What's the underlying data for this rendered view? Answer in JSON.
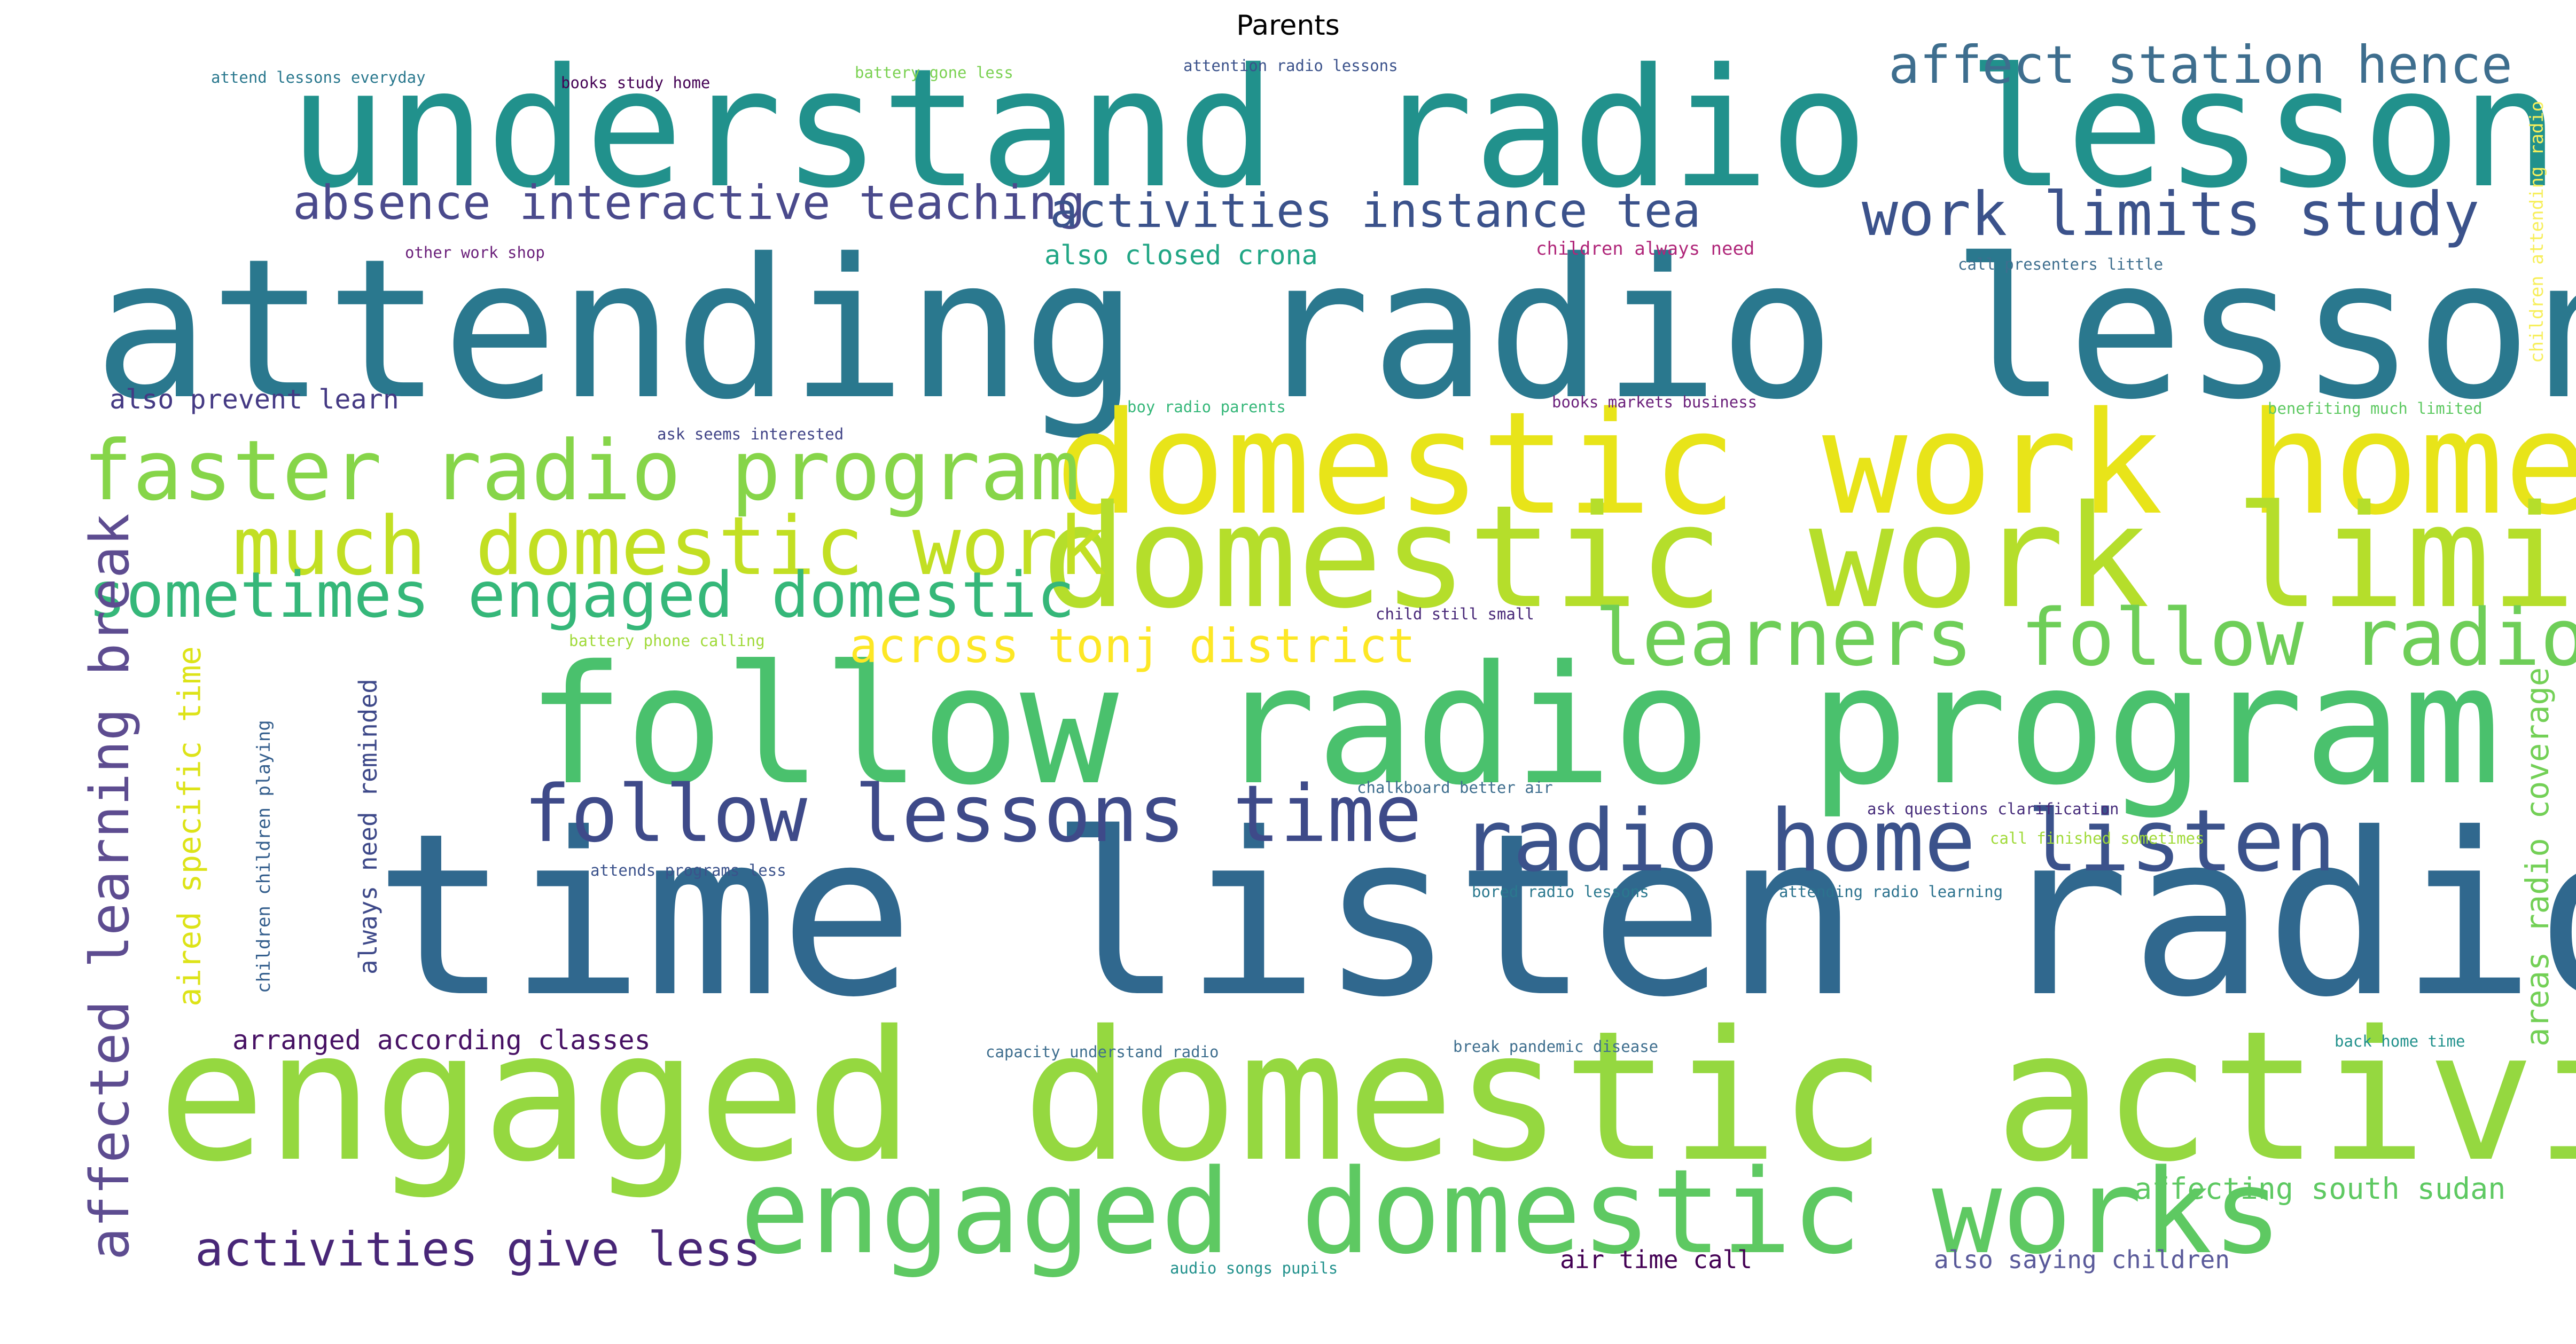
{
  "chart_data": {
    "type": "wordcloud",
    "title": "Parents",
    "words": [
      {
        "text": "time listen radio",
        "weight": 100,
        "color": "#30688e"
      },
      {
        "text": "attending radio lessons",
        "weight": 86,
        "color": "#2a788e"
      },
      {
        "text": "engaged domestic activities",
        "weight": 80,
        "color": "#95d840"
      },
      {
        "text": "understand radio lessons",
        "weight": 73,
        "color": "#21918c"
      },
      {
        "text": "follow radio program",
        "weight": 73,
        "color": "#4ac16d"
      },
      {
        "text": "domestic work home",
        "weight": 63,
        "color": "#e8e419"
      },
      {
        "text": "domestic work limits",
        "weight": 63,
        "color": "#b5de2b"
      },
      {
        "text": "engaged domestic works",
        "weight": 52,
        "color": "#5ec962"
      },
      {
        "text": "radio home listen",
        "weight": 38,
        "color": "#3b528b"
      },
      {
        "text": "faster radio program",
        "weight": 37,
        "color": "#86d549"
      },
      {
        "text": "much domestic work",
        "weight": 36,
        "color": "#c2df23"
      },
      {
        "text": "follow lessons time",
        "weight": 35,
        "color": "#3e4a89"
      },
      {
        "text": "learners follow radio",
        "weight": 35,
        "color": "#6ece58"
      },
      {
        "text": "sometimes engaged domestic",
        "weight": 28,
        "color": "#35b779"
      },
      {
        "text": "work limits study",
        "weight": 27,
        "color": "#3b528b"
      },
      {
        "text": "affected learning break",
        "weight": 24,
        "color": "#5d4c90"
      },
      {
        "text": "affect station hence",
        "weight": 23,
        "color": "#3e6e8e"
      },
      {
        "text": "absence interactive teaching",
        "weight": 21,
        "color": "#4a4a8c"
      },
      {
        "text": "activities instance tea",
        "weight": 21,
        "color": "#3b528b"
      },
      {
        "text": "across tonj district",
        "weight": 21,
        "color": "#fde725"
      },
      {
        "text": "activities give less",
        "weight": 21,
        "color": "#482677"
      },
      {
        "text": "aired specific time",
        "weight": 14,
        "color": "#dde318"
      },
      {
        "text": "areas radio coverage",
        "weight": 14,
        "color": "#73d056"
      },
      {
        "text": "affecting south sudan",
        "weight": 13,
        "color": "#5ec962"
      },
      {
        "text": "also closed crona",
        "weight": 12,
        "color": "#21a685"
      },
      {
        "text": "arranged according classes",
        "weight": 12,
        "color": "#471164"
      },
      {
        "text": "also prevent learn",
        "weight": 12,
        "color": "#443983"
      },
      {
        "text": "always need reminded",
        "weight": 11,
        "color": "#3e4989"
      },
      {
        "text": "air time call",
        "weight": 11,
        "color": "#440154"
      },
      {
        "text": "also saying children",
        "weight": 11,
        "color": "#5a5a9a"
      },
      {
        "text": "children always need",
        "weight": 8,
        "color": "#b0277a"
      },
      {
        "text": "children attending radio",
        "weight": 8,
        "color": "#f7ef5c"
      },
      {
        "text": "children children playing",
        "weight": 8,
        "color": "#355f8d"
      },
      {
        "text": "attend lessons everyday",
        "weight": 7,
        "color": "#2a788e"
      },
      {
        "text": "books study home",
        "weight": 7,
        "color": "#440154"
      },
      {
        "text": "battery gone less",
        "weight": 7,
        "color": "#7ad151"
      },
      {
        "text": "attention radio lessons",
        "weight": 7,
        "color": "#3b528b"
      },
      {
        "text": "other work shop",
        "weight": 7,
        "color": "#6a1f7a"
      },
      {
        "text": "call presenters little",
        "weight": 7,
        "color": "#3e6e8e"
      },
      {
        "text": "boy radio parents",
        "weight": 7,
        "color": "#35b779"
      },
      {
        "text": "books markets business",
        "weight": 7,
        "color": "#6a1f7a"
      },
      {
        "text": "benefiting much limited",
        "weight": 7,
        "color": "#5ec962"
      },
      {
        "text": "ask seems interested",
        "weight": 7,
        "color": "#414487"
      },
      {
        "text": "battery phone calling",
        "weight": 7,
        "color": "#a0da39"
      },
      {
        "text": "child still small",
        "weight": 7,
        "color": "#482878"
      },
      {
        "text": "chalkboard better air",
        "weight": 7,
        "color": "#3e6e8e"
      },
      {
        "text": "ask questions clarification",
        "weight": 7,
        "color": "#472d7b"
      },
      {
        "text": "call finished sometimes",
        "weight": 7,
        "color": "#a0da39"
      },
      {
        "text": "attends programs less",
        "weight": 7,
        "color": "#3b528b"
      },
      {
        "text": "bored radio lessons",
        "weight": 7,
        "color": "#2a788e"
      },
      {
        "text": "attending radio learning",
        "weight": 7,
        "color": "#2c728e"
      },
      {
        "text": "capacity understand radio",
        "weight": 7,
        "color": "#3e6e8e"
      },
      {
        "text": "break pandemic disease",
        "weight": 7,
        "color": "#3e6e8e"
      },
      {
        "text": "back home time",
        "weight": 7,
        "color": "#21918c"
      },
      {
        "text": "audio songs pupils",
        "weight": 7,
        "color": "#21918c"
      }
    ]
  }
}
